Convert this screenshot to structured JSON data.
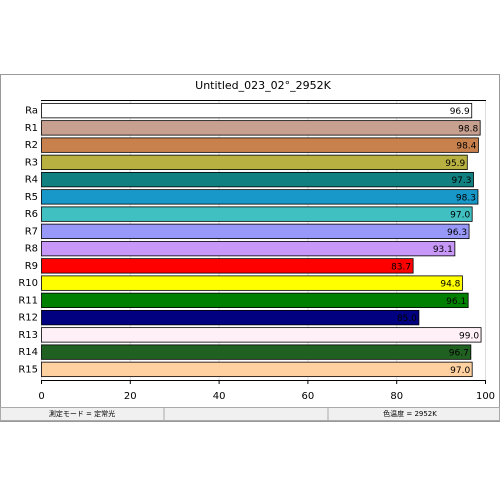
{
  "chart_data": {
    "type": "barh",
    "title": "Untitled_023_02°_2952K",
    "categories": [
      "Ra",
      "R1",
      "R2",
      "R3",
      "R4",
      "R5",
      "R6",
      "R7",
      "R8",
      "R9",
      "R10",
      "R11",
      "R12",
      "R13",
      "R14",
      "R15"
    ],
    "values": [
      96.9,
      98.8,
      98.4,
      95.9,
      97.3,
      98.3,
      97.0,
      96.3,
      93.1,
      83.7,
      94.8,
      96.1,
      85.0,
      99.0,
      96.7,
      97.0
    ],
    "value_labels": [
      "96.9",
      "98.8",
      "98.4",
      "95.9",
      "97.3",
      "98.3",
      "97.0",
      "96.3",
      "93.1",
      "83.7",
      "94.8",
      "96.1",
      "85.0",
      "99.0",
      "96.7",
      "97.0"
    ],
    "colors": [
      "#ffffff",
      "#c8a090",
      "#c8804c",
      "#b8b040",
      "#108080",
      "#1898c8",
      "#40c0c0",
      "#9898f8",
      "#c898f8",
      "#ff0000",
      "#ffff00",
      "#008000",
      "#000080",
      "#fff0f8",
      "#206020",
      "#ffd0a0"
    ],
    "xlim": [
      0,
      100
    ],
    "xticks": [
      0,
      20,
      40,
      60,
      80,
      100
    ],
    "grid": true
  },
  "status_bar": [
    "測定モード = 定常光",
    "色温度 = 2952K"
  ]
}
